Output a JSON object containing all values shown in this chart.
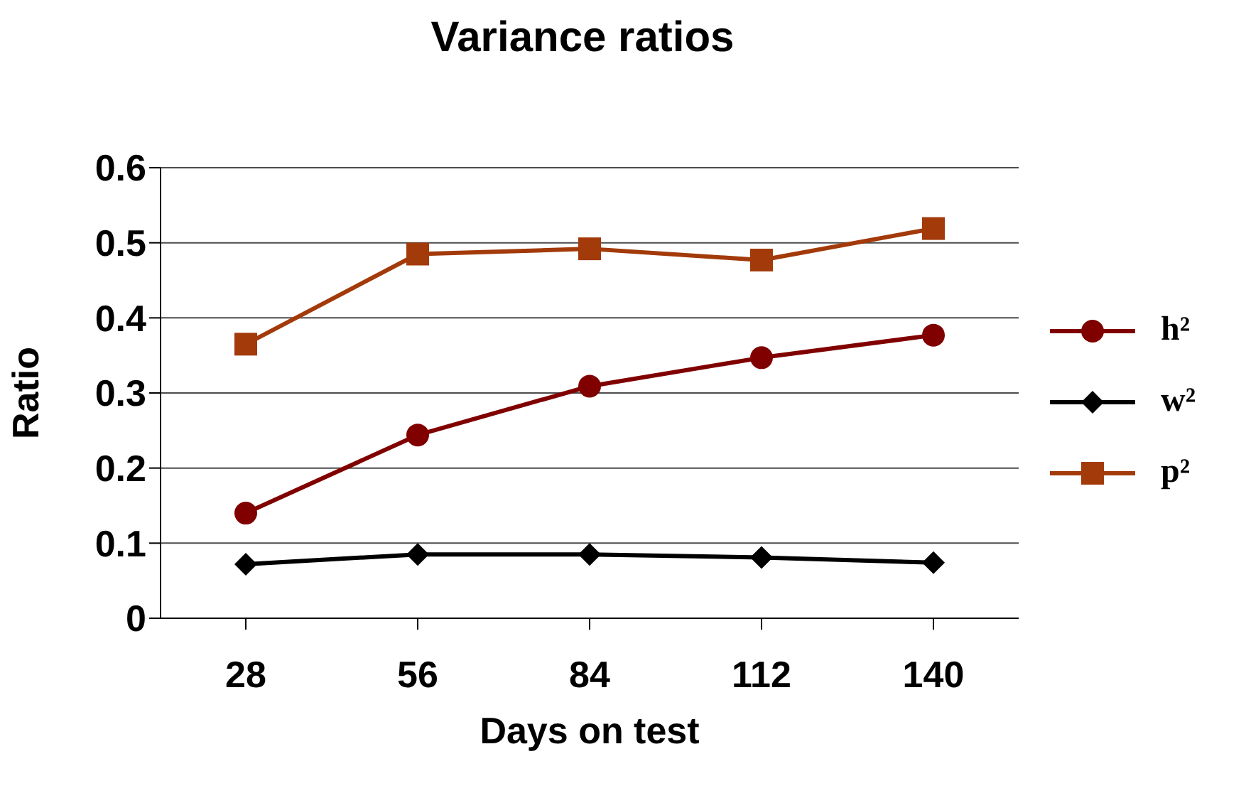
{
  "chart_data": {
    "type": "line",
    "title": "Variance ratios",
    "xlabel": "Days on test",
    "ylabel": "Ratio",
    "categories": [
      "28",
      "56",
      "84",
      "112",
      "140"
    ],
    "series": [
      {
        "name": "h²",
        "color": "#800000",
        "values": [
          0.14,
          0.244,
          0.309,
          0.347,
          0.377
        ],
        "marker": "circle"
      },
      {
        "name": "w²",
        "color": "#000000",
        "values": [
          0.072,
          0.085,
          0.085,
          0.081,
          0.074
        ],
        "marker": "diamond"
      },
      {
        "name": "p²",
        "color": "#a33a0a",
        "values": [
          0.365,
          0.485,
          0.492,
          0.477,
          0.519
        ],
        "marker": "square"
      }
    ],
    "ylim": [
      0,
      0.6
    ],
    "yticks": [
      0,
      0.1,
      0.2,
      0.3,
      0.4,
      0.5,
      0.6
    ],
    "grid": "y",
    "legend": "right"
  }
}
